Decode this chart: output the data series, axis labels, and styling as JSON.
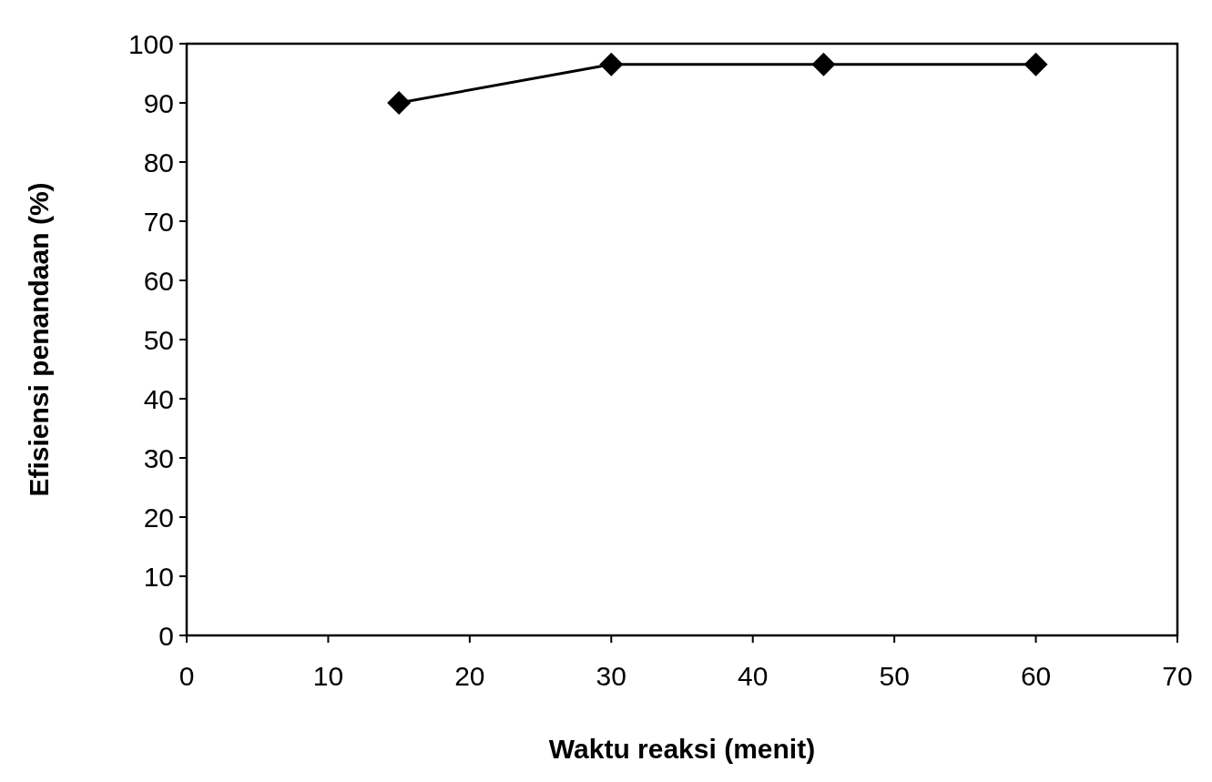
{
  "chart_data": {
    "type": "line",
    "xlabel": "Waktu reaksi (menit)",
    "ylabel": "Efisiensi penandaan (%)",
    "x": [
      15,
      30,
      45,
      60
    ],
    "series": [
      {
        "color": "#000000",
        "values": [
          90,
          96.5,
          96.5,
          96.5
        ]
      }
    ],
    "xlim": [
      0,
      70
    ],
    "xticks": [
      0,
      10,
      20,
      30,
      40,
      50,
      60,
      70
    ],
    "ylim": [
      0,
      100
    ],
    "yticks": [
      0,
      10,
      20,
      30,
      40,
      50,
      60,
      70,
      80,
      90,
      100
    ],
    "marker": "diamond",
    "line_style": "solid"
  }
}
